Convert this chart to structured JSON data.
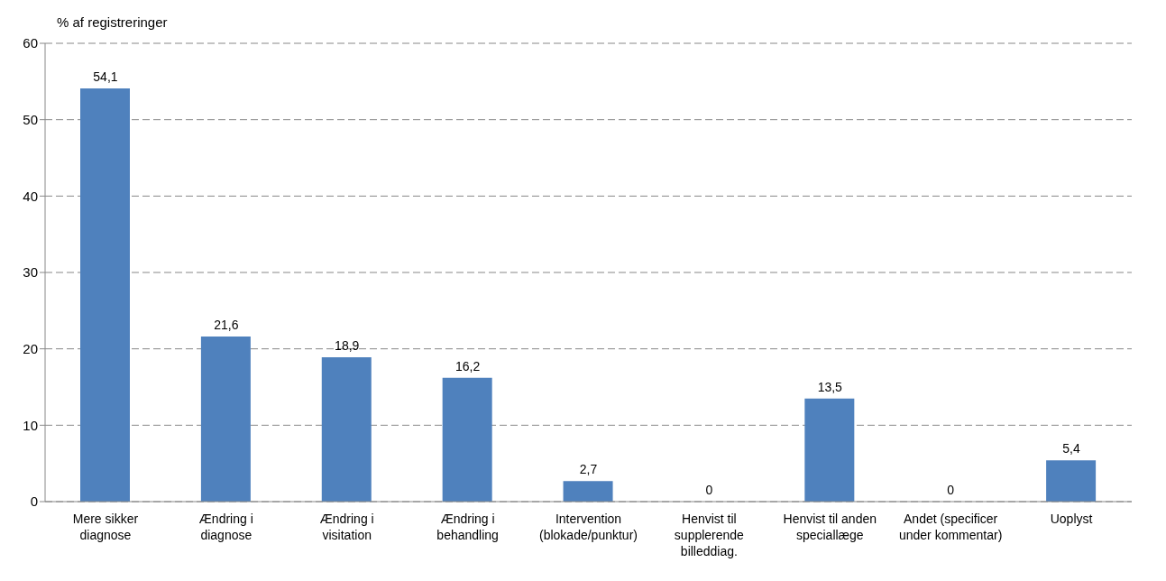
{
  "chart_data": {
    "type": "bar",
    "ylabel": "% af registreringer",
    "categories": [
      "Mere sikker diagnose",
      "Ændring i diagnose",
      "Ændring i visitation",
      "Ændring i behandling",
      "Intervention (blokade/punktur)",
      "Henvist til supplerende billeddiag.",
      "Henvist til anden speciallæge",
      "Andet (specificer under kommentar)",
      "Uoplyst"
    ],
    "values": [
      54.1,
      21.6,
      18.9,
      16.2,
      2.7,
      0,
      13.5,
      0,
      5.4
    ],
    "value_labels": [
      "54,1",
      "21,6",
      "18,9",
      "16,2",
      "2,7",
      "0",
      "13,5",
      "0",
      "5,4"
    ],
    "color": "#4f81bd",
    "ylim": [
      0,
      60
    ],
    "yticks": [
      0,
      10,
      20,
      30,
      40,
      50,
      60
    ],
    "grid": "y"
  }
}
